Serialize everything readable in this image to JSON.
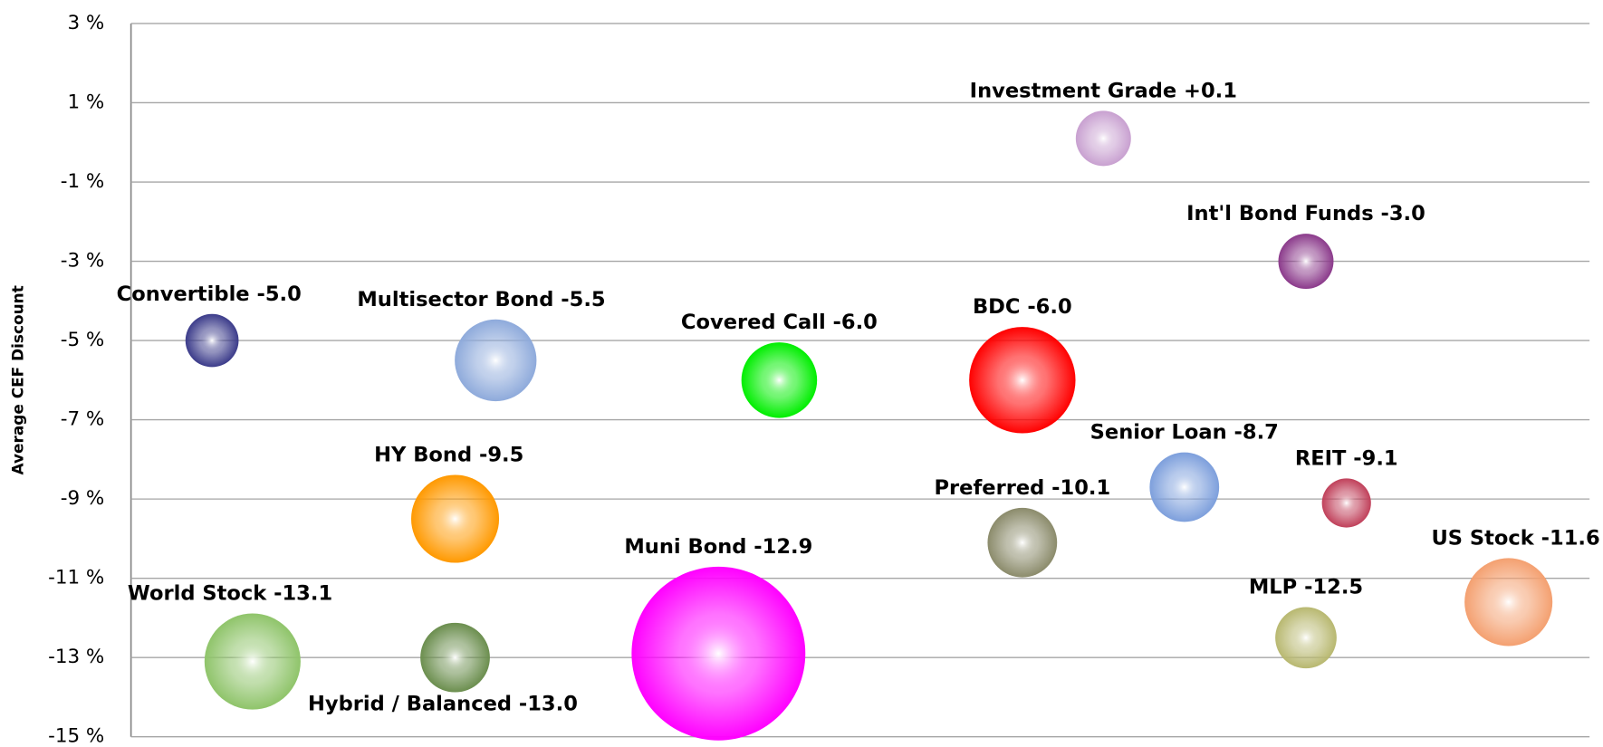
{
  "chart_data": {
    "type": "bubble",
    "y_label": "Average CEF Discount",
    "ylim": [
      -15,
      3
    ],
    "yticks": [
      {
        "value": -15,
        "label": "-15 %"
      },
      {
        "value": -13,
        "label": "-13 %"
      },
      {
        "value": -11,
        "label": "-11 %"
      },
      {
        "value": -9,
        "label": "-9 %"
      },
      {
        "value": -7,
        "label": "-7 %"
      },
      {
        "value": -5,
        "label": "-5 %"
      },
      {
        "value": -3,
        "label": "-3 %"
      },
      {
        "value": -1,
        "label": "-1 %"
      },
      {
        "value": 1,
        "label": "1 %"
      },
      {
        "value": 3,
        "label": "3 %"
      }
    ],
    "xlim": [
      0,
      36
    ],
    "grid": true,
    "series": [
      {
        "x": [
          2,
          3,
          8,
          8,
          9,
          14.5,
          16,
          22,
          22,
          24,
          26,
          29,
          29,
          30,
          34
        ],
        "values": [
          -5.0,
          -13.1,
          -9.5,
          -13.0,
          -5.5,
          -12.9,
          -6.0,
          -6.0,
          -10.1,
          0.1,
          -8.7,
          -3.0,
          -12.5,
          -9.1,
          -11.6
        ],
        "sizes": [
          26,
          47,
          43,
          34,
          40,
          85,
          37,
          52,
          34,
          27,
          34,
          27,
          30,
          24,
          43
        ],
        "value_labels": [
          "Convertible  -5.0",
          "World Stock  -13.1",
          "HY Bond  -9.5",
          "Hybrid / Balanced -13.0",
          "Multisector Bond -5.5",
          "Muni Bond  -12.9",
          "Covered Call  -6.0",
          "BDC  -6.0",
          "Preferred  -10.1",
          "Investment Grade  +0.1",
          "Senior Loan  -8.7",
          "Int'l Bond Funds -3.0",
          "MLP  -12.5",
          "REIT  -9.1",
          "US Stock  -11.6"
        ],
        "colors": [
          "#3b3b8a",
          "#8fc46a",
          "#ff9900",
          "#6b8e4e",
          "#8eaadb",
          "#ff00ff",
          "#00ee00",
          "#ff0000",
          "#8b8b6b",
          "#c8a0d0",
          "#7d9fdc",
          "#8b3a8b",
          "#b8b870",
          "#c0405a",
          "#f4a070"
        ]
      }
    ]
  }
}
